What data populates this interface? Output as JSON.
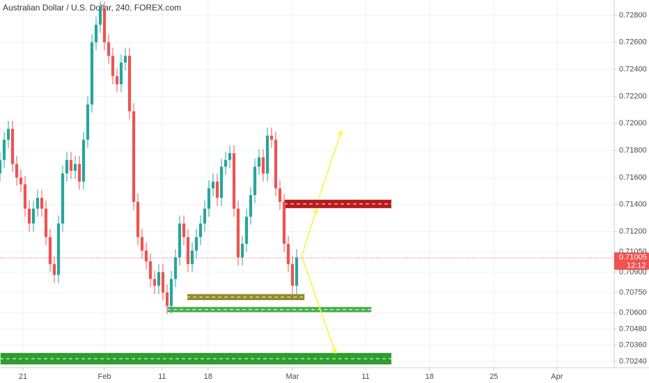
{
  "chart_data": {
    "type": "candlestick",
    "title": "Australian Dollar / U.S. Dollar, 240, FOREX.com",
    "up_color": "#26a69a",
    "down_color": "#ef5350",
    "grid": true,
    "xlim": [
      0,
      147
    ],
    "ylim": [
      0.70194,
      0.72913
    ],
    "xticks": [
      {
        "value": 5.5,
        "label": "21"
      },
      {
        "value": 25,
        "label": "Feb"
      },
      {
        "value": 38.8,
        "label": "11"
      },
      {
        "value": 49.8,
        "label": "18"
      },
      {
        "value": 70,
        "label": "Mar"
      },
      {
        "value": 87.5,
        "label": "11"
      },
      {
        "value": 102.8,
        "label": "18"
      },
      {
        "value": 118.2,
        "label": "25"
      },
      {
        "value": 133.3,
        "label": "Apr"
      }
    ],
    "yticks": [
      {
        "value": 0.728,
        "label": "0.72800"
      },
      {
        "value": 0.726,
        "label": "0.72600"
      },
      {
        "value": 0.724,
        "label": "0.72400"
      },
      {
        "value": 0.722,
        "label": "0.72200"
      },
      {
        "value": 0.72,
        "label": "0.72000"
      },
      {
        "value": 0.718,
        "label": "0.71800"
      },
      {
        "value": 0.716,
        "label": "0.71600"
      },
      {
        "value": 0.714,
        "label": "0.71400"
      },
      {
        "value": 0.712,
        "label": "0.71200"
      },
      {
        "value": 0.7105,
        "label": "0.71050"
      },
      {
        "value": 0.709,
        "label": "0.70900"
      },
      {
        "value": 0.7075,
        "label": "0.70750"
      },
      {
        "value": 0.706,
        "label": "0.70600"
      },
      {
        "value": 0.7048,
        "label": "0.70480"
      },
      {
        "value": 0.7036,
        "label": "0.70360"
      },
      {
        "value": 0.7024,
        "label": "0.70240"
      }
    ],
    "x": [
      0,
      1,
      2,
      3,
      4,
      5,
      6,
      7,
      8,
      9,
      10,
      11,
      12,
      13,
      14,
      15,
      16,
      17,
      18,
      19,
      20,
      21,
      22,
      23,
      24,
      25,
      26,
      27,
      28,
      29,
      30,
      31,
      32,
      33,
      34,
      35,
      36,
      37,
      38,
      39,
      40,
      41,
      42,
      43,
      44,
      45,
      46,
      47,
      48,
      49,
      50,
      51,
      52,
      53,
      54,
      55,
      56,
      57,
      58,
      59,
      60,
      61,
      62,
      63,
      64,
      65,
      66,
      67,
      68,
      69,
      70,
      71
    ],
    "open": [
      0.7163,
      0.7173,
      0.7188,
      0.7196,
      0.717,
      0.716,
      0.7155,
      0.7137,
      0.7126,
      0.7137,
      0.7145,
      0.7137,
      0.7116,
      0.7096,
      0.7088,
      0.7126,
      0.7163,
      0.7173,
      0.7165,
      0.717,
      0.7157,
      0.7188,
      0.7214,
      0.726,
      0.7273,
      0.7284,
      0.726,
      0.725,
      0.7235,
      0.7229,
      0.7245,
      0.725,
      0.7209,
      0.7142,
      0.7116,
      0.7106,
      0.7098,
      0.7085,
      0.708,
      0.709,
      0.7075,
      0.7065,
      0.7085,
      0.7101,
      0.7126,
      0.7116,
      0.7096,
      0.7106,
      0.7116,
      0.7126,
      0.7137,
      0.7152,
      0.7157,
      0.7145,
      0.7168,
      0.7173,
      0.7178,
      0.7137,
      0.7101,
      0.7111,
      0.7131,
      0.7147,
      0.7168,
      0.7175,
      0.7163,
      0.7191,
      0.7188,
      0.7152,
      0.7142,
      0.7111,
      0.7096,
      0.708
    ],
    "high": [
      0.7179,
      0.7194,
      0.7202,
      0.7202,
      0.7176,
      0.7166,
      0.7161,
      0.7143,
      0.7143,
      0.7151,
      0.7151,
      0.7143,
      0.7122,
      0.7102,
      0.7132,
      0.7169,
      0.7179,
      0.7179,
      0.7176,
      0.7176,
      0.7194,
      0.722,
      0.7266,
      0.7279,
      0.729,
      0.729,
      0.7266,
      0.7256,
      0.7241,
      0.7251,
      0.7256,
      0.7256,
      0.7215,
      0.7148,
      0.7122,
      0.7112,
      0.7104,
      0.7091,
      0.7096,
      0.7096,
      0.7081,
      0.7091,
      0.7107,
      0.7132,
      0.7132,
      0.7122,
      0.7112,
      0.7122,
      0.7132,
      0.7143,
      0.7158,
      0.7163,
      0.7163,
      0.7174,
      0.7179,
      0.7184,
      0.7184,
      0.7143,
      0.7117,
      0.7137,
      0.7153,
      0.7174,
      0.7181,
      0.7181,
      0.7197,
      0.7197,
      0.7194,
      0.7158,
      0.7148,
      0.7117,
      0.7102,
      0.7107
    ],
    "low": [
      0.7157,
      0.7167,
      0.7182,
      0.7164,
      0.7154,
      0.7149,
      0.7131,
      0.712,
      0.712,
      0.7131,
      0.7131,
      0.711,
      0.709,
      0.7082,
      0.7082,
      0.712,
      0.7157,
      0.7159,
      0.7159,
      0.7151,
      0.7151,
      0.7182,
      0.7208,
      0.7254,
      0.7267,
      0.7254,
      0.7244,
      0.7229,
      0.7223,
      0.7223,
      0.7239,
      0.7203,
      0.7136,
      0.711,
      0.71,
      0.7092,
      0.7079,
      0.7074,
      0.7074,
      0.7069,
      0.7059,
      0.7059,
      0.7079,
      0.7095,
      0.711,
      0.709,
      0.709,
      0.71,
      0.711,
      0.712,
      0.7131,
      0.7146,
      0.7139,
      0.7139,
      0.7162,
      0.7167,
      0.7131,
      0.7095,
      0.7095,
      0.7105,
      0.7125,
      0.7141,
      0.7162,
      0.7157,
      0.7157,
      0.7182,
      0.7146,
      0.7136,
      0.7105,
      0.709,
      0.7074,
      0.7074
    ],
    "close": [
      0.7173,
      0.7188,
      0.7196,
      0.717,
      0.716,
      0.7155,
      0.7137,
      0.7126,
      0.7137,
      0.7145,
      0.7137,
      0.7116,
      0.7096,
      0.7088,
      0.7126,
      0.7163,
      0.7173,
      0.7165,
      0.717,
      0.7157,
      0.7188,
      0.7214,
      0.726,
      0.7273,
      0.7284,
      0.726,
      0.725,
      0.7235,
      0.7229,
      0.7245,
      0.725,
      0.7209,
      0.7142,
      0.7116,
      0.7106,
      0.7098,
      0.7085,
      0.708,
      0.709,
      0.7075,
      0.7065,
      0.7085,
      0.7101,
      0.7126,
      0.7116,
      0.7096,
      0.7106,
      0.7116,
      0.7126,
      0.7137,
      0.7152,
      0.7157,
      0.7145,
      0.7168,
      0.7173,
      0.7178,
      0.7137,
      0.7101,
      0.7111,
      0.7131,
      0.7147,
      0.7168,
      0.7175,
      0.7163,
      0.7191,
      0.7188,
      0.7152,
      0.7142,
      0.7111,
      0.7096,
      0.708,
      0.7101
    ],
    "zones": [
      {
        "x1": 68,
        "x2": 93.8,
        "top": 0.7144,
        "bottom": 0.7137,
        "color": "#b71c1c"
      },
      {
        "x1": 40,
        "x2": 89,
        "top": 0.70647,
        "bottom": 0.706,
        "color": "#4caf50"
      },
      {
        "x1": 44.7,
        "x2": 73,
        "top": 0.70742,
        "bottom": 0.7069,
        "color": "#8d8a2a"
      },
      {
        "x1": 0,
        "x2": 93.8,
        "top": 0.70307,
        "bottom": 0.70214,
        "color": "#2e9e2e"
      }
    ],
    "arrows": [
      {
        "x1": 72.2,
        "y1": 0.71018,
        "x2": 75.8,
        "y2": 0.71368
      },
      {
        "x1": 76.3,
        "y1": 0.71445,
        "x2": 81.7,
        "y2": 0.71945
      },
      {
        "x1": 72.2,
        "y1": 0.71018,
        "x2": 80.3,
        "y2": 0.70302
      }
    ],
    "arrow_color": "#f5f53a",
    "last_price": {
      "value": 0.71005,
      "label": "0.71005"
    },
    "countdown": "12:12"
  }
}
